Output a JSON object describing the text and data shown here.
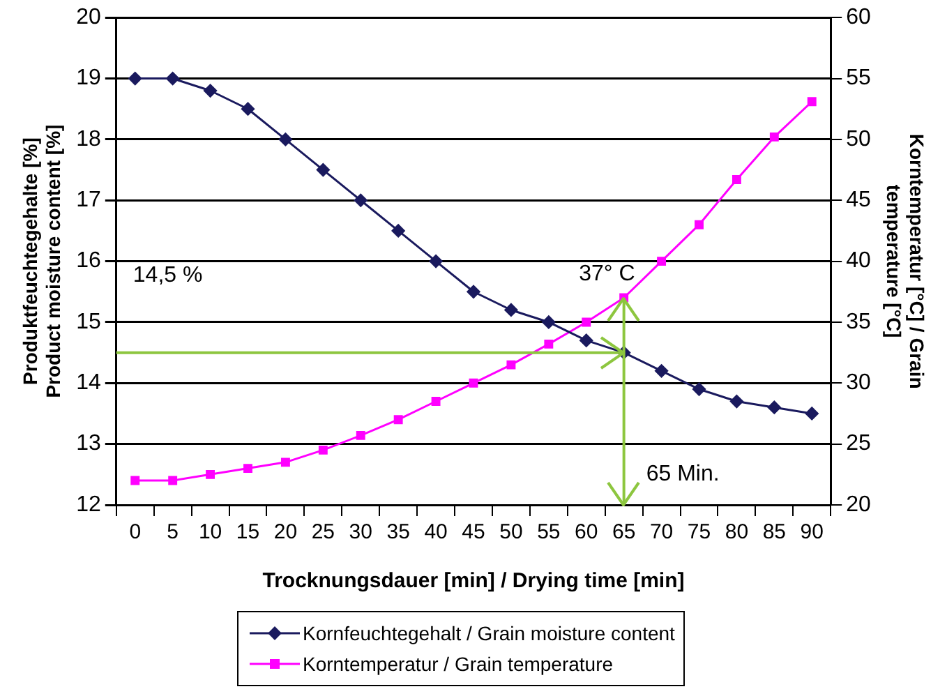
{
  "chart_data": {
    "type": "line",
    "xlabel": "Trocknungsdauer [min] / Drying time [min]",
    "ylabel": "Produktfeuchtegehalte [%]\nProduct moisture content [%]",
    "y2label": "Korntemperatur [°C] / Grain\ntemperature [°C]",
    "categories": [
      "0",
      "5",
      "10",
      "15",
      "20",
      "25",
      "30",
      "35",
      "40",
      "45",
      "50",
      "55",
      "60",
      "65",
      "70",
      "75",
      "80",
      "85",
      "90"
    ],
    "series": [
      {
        "name": "Kornfeuchtegehalt / Grain moisture content",
        "color": "#1a1a5e",
        "marker": "diamond",
        "values": [
          19,
          19,
          18.8,
          18.5,
          18,
          17.5,
          17,
          16.5,
          16,
          15.5,
          15.2,
          15,
          14.7,
          14.5,
          14.2,
          13.9,
          13.7,
          13.6,
          13.5
        ]
      },
      {
        "name": "Korntemperatur / Grain temperature",
        "color": "#ff00ff",
        "marker": "square",
        "axis": "y2",
        "values": [
          22,
          22,
          22.5,
          23,
          23.5,
          24.5,
          25.7,
          27,
          28.5,
          30,
          31.5,
          33.2,
          35,
          37,
          40,
          43,
          46.7,
          50.2,
          53.1
        ]
      }
    ],
    "ylim": [
      12,
      20
    ],
    "yticks": [
      12,
      13,
      14,
      15,
      16,
      17,
      18,
      19,
      20
    ],
    "y2lim": [
      20,
      60
    ],
    "y2ticks": [
      20,
      25,
      30,
      35,
      40,
      45,
      50,
      55,
      60
    ],
    "grid": "y",
    "legend": "bottom",
    "line_style": "solid",
    "annotations": [
      "14,5 %",
      "37° C",
      "65 Min."
    ],
    "ref_lines": [
      {
        "axis": "y",
        "value": 14.5,
        "color": "#8dc63f"
      },
      {
        "axis": "x",
        "value": "65",
        "color": "#8dc63f"
      }
    ]
  }
}
